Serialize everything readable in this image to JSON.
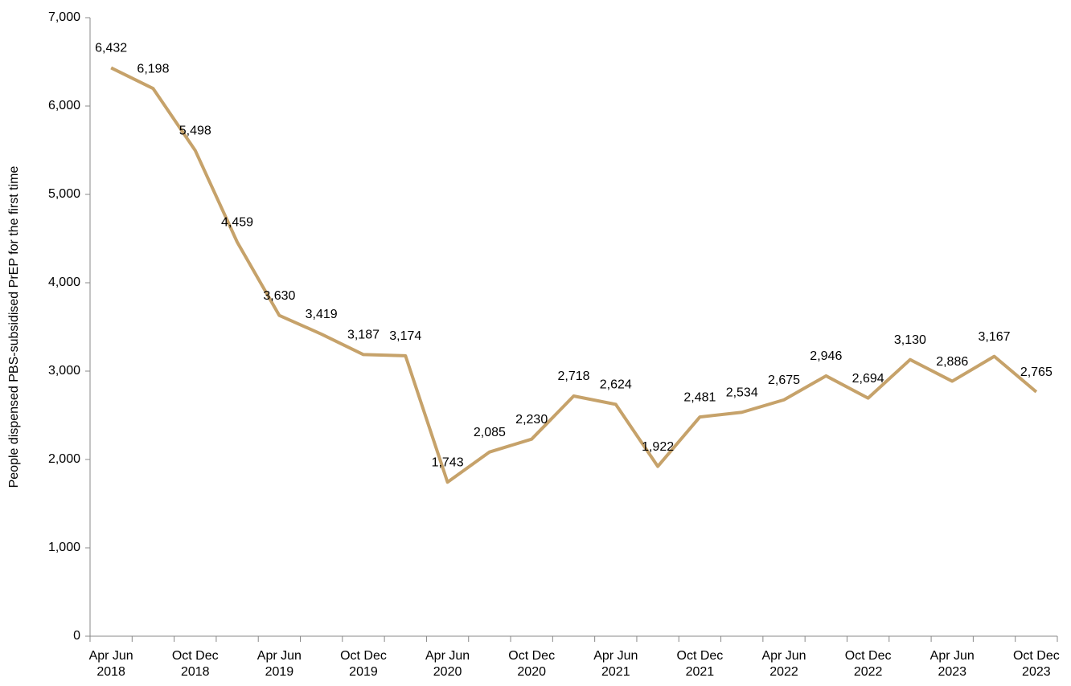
{
  "chart_data": {
    "type": "line",
    "y_label": "People dispensed PBS-subsidised PrEP for the first time",
    "categories": [
      "Apr Jun 2018",
      null,
      "Oct Dec 2018",
      null,
      "Apr Jun 2019",
      null,
      "Oct Dec 2019",
      null,
      "Apr Jun 2020",
      null,
      "Oct Dec 2020",
      null,
      "Apr Jun 2021",
      null,
      "Oct Dec 2021",
      null,
      "Apr Jun 2022",
      null,
      "Oct Dec 2022",
      null,
      "Apr Jun 2023",
      null,
      "Oct Dec 2023"
    ],
    "series": [
      {
        "color": "#c6a26a",
        "values": [
          6432,
          6198,
          5498,
          4459,
          3630,
          3419,
          3187,
          3174,
          1743,
          2085,
          2230,
          2718,
          2624,
          1922,
          2481,
          2534,
          2675,
          2946,
          2694,
          3130,
          2886,
          3167,
          2765
        ],
        "value_labels": [
          "6,432",
          "6,198",
          "5,498",
          "4,459",
          "3,630",
          "3,419",
          "3,187",
          "3,174",
          "1,743",
          "2,085",
          "2,230",
          "2,718",
          "2,624",
          "1,922",
          "2,481",
          "2,534",
          "2,675",
          "2,946",
          "2,694",
          "3,130",
          "2,886",
          "3,167",
          "2,765"
        ]
      }
    ],
    "ylim": [
      0,
      7000
    ],
    "yticks": [
      0,
      {
        "value": 1000,
        "label": "1,000"
      },
      {
        "value": 2000,
        "label": "2,000"
      },
      {
        "value": 3000,
        "label": "3,000"
      },
      {
        "value": 4000,
        "label": "4,000"
      },
      {
        "value": 5000,
        "label": "5,000"
      },
      {
        "value": 6000,
        "label": "6,000"
      },
      {
        "value": 7000,
        "label": "7,000"
      }
    ],
    "grid": false
  }
}
